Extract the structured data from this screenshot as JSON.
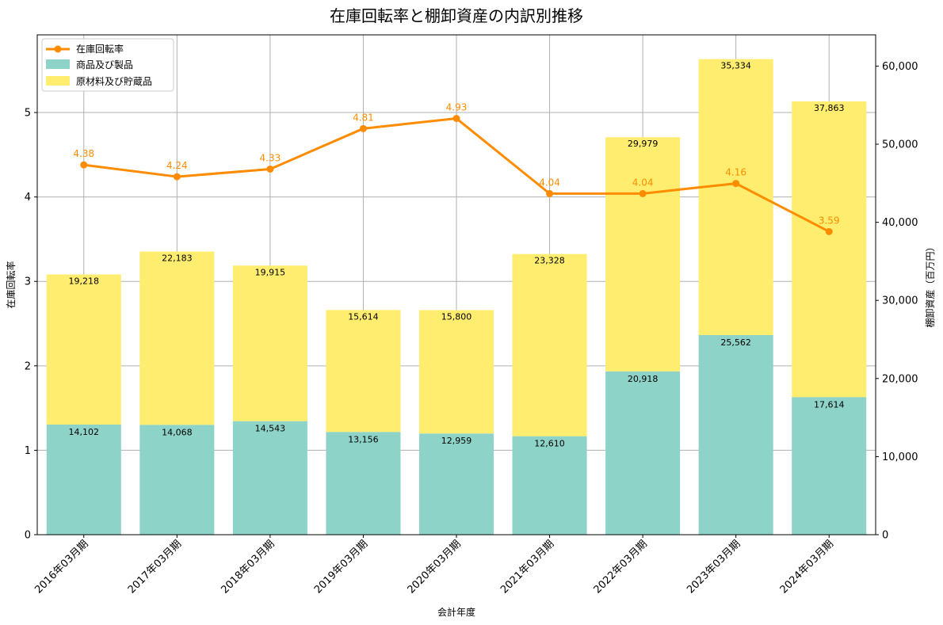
{
  "chart_data": {
    "type": "bar",
    "title": "在庫回転率と棚卸資産の内訳別推移",
    "xlabel": "会計年度",
    "ylabel_left": "在庫回転率",
    "ylabel_right": "棚卸資産（百万円）",
    "categories": [
      "2016年03月期",
      "2017年03月期",
      "2018年03月期",
      "2019年03月期",
      "2020年03月期",
      "2021年03月期",
      "2022年03月期",
      "2023年03月期",
      "2024年03月期"
    ],
    "series": [
      {
        "name": "商品及び製品",
        "kind": "bar",
        "axis": "right",
        "color": "#8dd3c7",
        "values": [
          14102,
          14068,
          14543,
          13156,
          12959,
          12610,
          20918,
          25562,
          17614
        ]
      },
      {
        "name": "原材料及び貯蔵品",
        "kind": "bar",
        "axis": "right",
        "color": "#ffed6f",
        "values": [
          19218,
          22183,
          19915,
          15614,
          15800,
          23328,
          29979,
          35334,
          37863
        ]
      },
      {
        "name": "在庫回転率",
        "kind": "line",
        "axis": "left",
        "color": "#ff8c00",
        "values": [
          4.38,
          4.24,
          4.33,
          4.81,
          4.93,
          4.04,
          4.04,
          4.16,
          3.59
        ]
      }
    ],
    "bar_labels": {
      "goods": [
        "14,102",
        "14,068",
        "14,543",
        "13,156",
        "12,959",
        "12,610",
        "20,918",
        "25,562",
        "17,614"
      ],
      "materials": [
        "19,218",
        "22,183",
        "19,915",
        "15,614",
        "15,800",
        "23,328",
        "29,979",
        "35,334",
        "37,863"
      ]
    },
    "line_labels": [
      "4.38",
      "4.24",
      "4.33",
      "4.81",
      "4.93",
      "4.04",
      "4.04",
      "4.16",
      "3.59"
    ],
    "ylim_left": [
      0,
      5.92
    ],
    "ylim_right": [
      0,
      64000
    ],
    "yticks_left": [
      "0",
      "1",
      "2",
      "3",
      "4",
      "5"
    ],
    "yticks_right": [
      "0",
      "10,000",
      "20,000",
      "30,000",
      "40,000",
      "50,000",
      "60,000"
    ],
    "grid": true,
    "legend": "top-left"
  }
}
